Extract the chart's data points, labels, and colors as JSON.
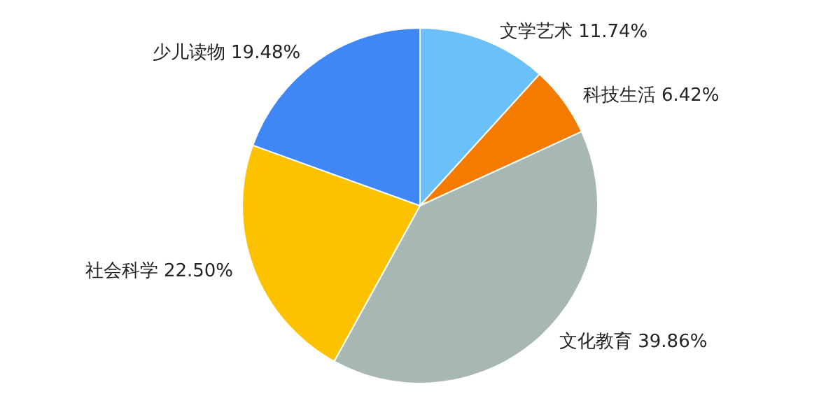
{
  "chart_data": {
    "type": "pie",
    "categories": [
      "文学艺术",
      "科技生活",
      "文化教育",
      "社会科学",
      "少儿读物"
    ],
    "values": [
      11.74,
      6.42,
      39.86,
      22.5,
      19.48
    ],
    "value_labels": [
      "11.74%",
      "6.42%",
      "39.86%",
      "22.50%",
      "19.48%"
    ],
    "colors": [
      "#6ac1fa",
      "#f47b00",
      "#a7b7b3",
      "#fcc200",
      "#3f87f5"
    ],
    "legend": false
  }
}
